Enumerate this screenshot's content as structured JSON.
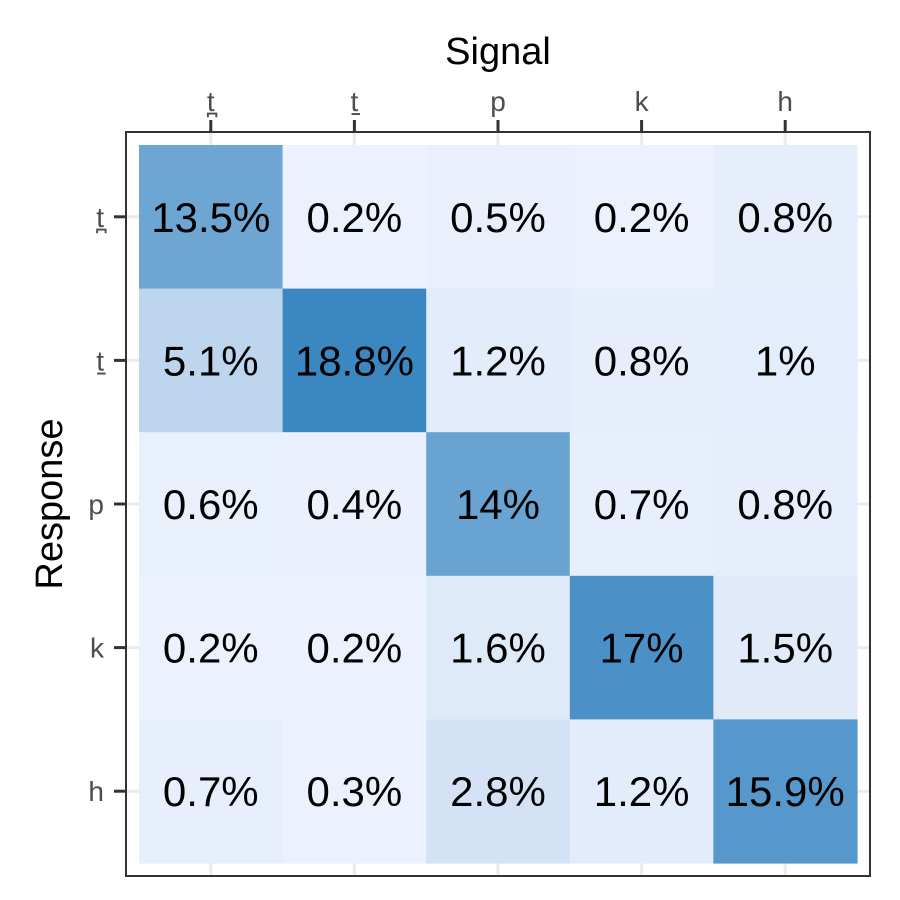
{
  "chart_data": {
    "type": "heatmap",
    "xlabel": "Signal",
    "ylabel": "Response",
    "x_categories": [
      "t̪",
      "t̠",
      "p",
      "k",
      "h"
    ],
    "y_categories": [
      "t̪",
      "t̠",
      "p",
      "k",
      "h"
    ],
    "values": [
      [
        13.5,
        0.2,
        0.5,
        0.2,
        0.8
      ],
      [
        5.1,
        18.8,
        1.2,
        0.8,
        1
      ],
      [
        0.6,
        0.4,
        14,
        0.7,
        0.8
      ],
      [
        0.2,
        0.2,
        1.6,
        17,
        1.5
      ],
      [
        0.7,
        0.3,
        2.8,
        1.2,
        15.9
      ]
    ],
    "cell_labels": [
      [
        "13.5%",
        "0.2%",
        "0.5%",
        "0.2%",
        "0.8%"
      ],
      [
        "5.1%",
        "18.8%",
        "1.2%",
        "0.8%",
        "1%"
      ],
      [
        "0.6%",
        "0.4%",
        "14%",
        "0.7%",
        "0.8%"
      ],
      [
        "0.2%",
        "0.2%",
        "1.6%",
        "17%",
        "1.5%"
      ],
      [
        "0.7%",
        "0.3%",
        "2.8%",
        "1.2%",
        "15.9%"
      ]
    ],
    "color_scale": {
      "low": "#eef3fe",
      "high": "#3a87c2",
      "min": 0,
      "max": 18.8
    },
    "x_axis_position": "top",
    "grid": true
  }
}
